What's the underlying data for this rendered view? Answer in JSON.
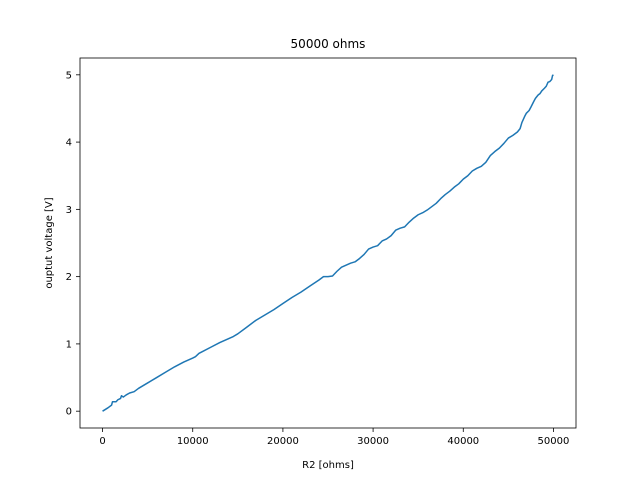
{
  "chart_data": {
    "type": "line",
    "title": "50000 ohms",
    "xlabel": "R2 [ohms]",
    "ylabel": "ouptut voltage [V]",
    "xlim": [
      -2500,
      52500
    ],
    "ylim": [
      -0.25,
      5.25
    ],
    "xticks": [
      0,
      10000,
      20000,
      30000,
      40000,
      50000
    ],
    "yticks": [
      0,
      1,
      2,
      3,
      4,
      5
    ],
    "grid": false,
    "color": "#1f77b4",
    "series": [
      {
        "x": [
          0,
          600,
          1000,
          1100,
          1500,
          1700,
          2000,
          2100,
          2300,
          2600,
          3000,
          3500,
          4000,
          5000,
          6000,
          7000,
          8000,
          9000,
          10000,
          10300,
          10700,
          11000,
          12000,
          13000,
          14000,
          14500,
          15000,
          16000,
          17000,
          18000,
          19000,
          20000,
          21000,
          22000,
          23000,
          24000,
          24500,
          24800,
          25000,
          25500,
          26000,
          26500,
          27000,
          27500,
          28000,
          28500,
          29000,
          29500,
          30000,
          30500,
          31000,
          31500,
          32000,
          32500,
          33000,
          33500,
          34000,
          34500,
          35000,
          35500,
          36000,
          36500,
          37000,
          37500,
          38000,
          38500,
          39000,
          39500,
          40000,
          40500,
          41000,
          41500,
          42000,
          42500,
          43000,
          43500,
          44000,
          44500,
          45000,
          45500,
          46000,
          46300,
          46500,
          46800,
          47000,
          47300,
          47500,
          47800,
          48000,
          48300,
          48500,
          48700,
          49000,
          49200,
          49400,
          49600,
          49800,
          49900,
          50000
        ],
        "y": [
          0,
          0.05,
          0.09,
          0.14,
          0.14,
          0.17,
          0.19,
          0.23,
          0.21,
          0.24,
          0.27,
          0.29,
          0.34,
          0.42,
          0.5,
          0.58,
          0.66,
          0.73,
          0.79,
          0.81,
          0.86,
          0.88,
          0.95,
          1.02,
          1.08,
          1.11,
          1.15,
          1.25,
          1.35,
          1.43,
          1.51,
          1.6,
          1.69,
          1.77,
          1.86,
          1.95,
          2.0,
          2.0,
          2.0,
          2.01,
          2.08,
          2.14,
          2.17,
          2.2,
          2.22,
          2.27,
          2.33,
          2.41,
          2.44,
          2.46,
          2.53,
          2.56,
          2.61,
          2.69,
          2.72,
          2.74,
          2.81,
          2.87,
          2.92,
          2.95,
          2.99,
          3.04,
          3.09,
          3.16,
          3.22,
          3.27,
          3.33,
          3.38,
          3.45,
          3.5,
          3.57,
          3.61,
          3.64,
          3.7,
          3.8,
          3.86,
          3.91,
          3.98,
          4.06,
          4.1,
          4.15,
          4.2,
          4.29,
          4.38,
          4.43,
          4.47,
          4.52,
          4.6,
          4.65,
          4.7,
          4.72,
          4.76,
          4.8,
          4.83,
          4.89,
          4.9,
          4.93,
          4.99,
          5.0
        ]
      }
    ]
  }
}
